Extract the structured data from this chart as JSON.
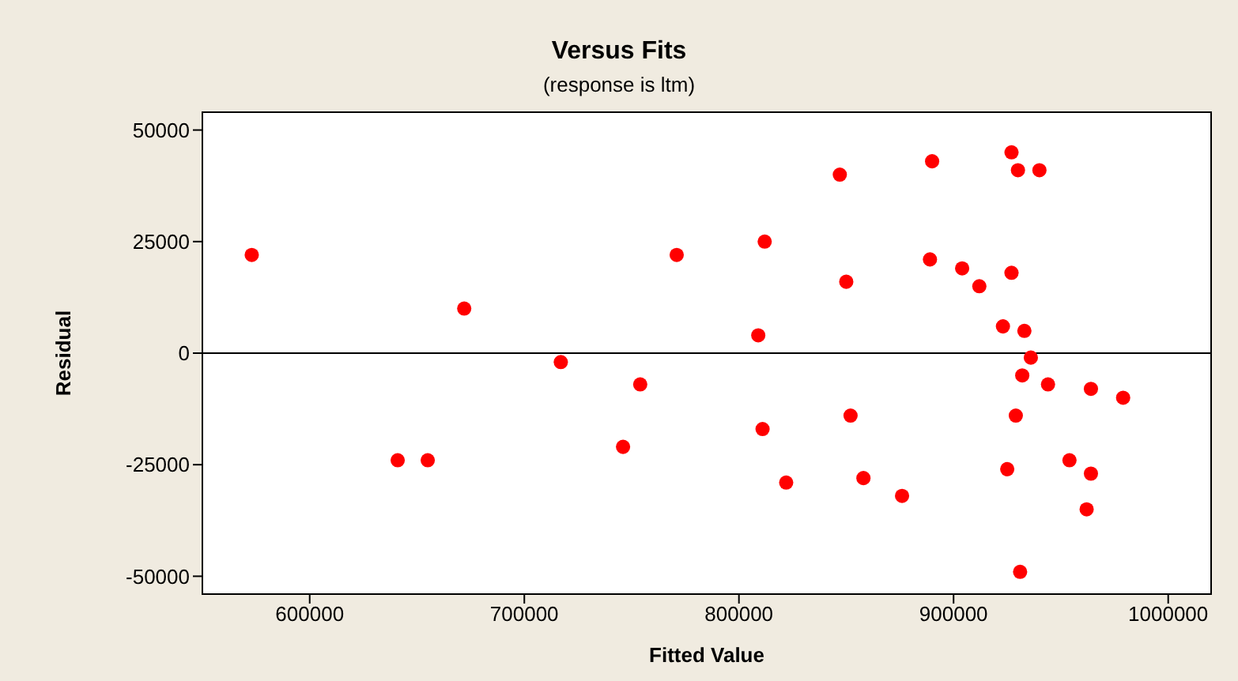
{
  "chart_data": {
    "type": "scatter",
    "title": "Versus Fits",
    "subtitle": "(response is ltm)",
    "xlabel": "Fitted Value",
    "ylabel": "Residual",
    "x": [
      573000,
      641000,
      655000,
      672000,
      717000,
      746000,
      754000,
      771000,
      809000,
      811000,
      812000,
      822000,
      847000,
      850000,
      852000,
      858000,
      876000,
      889000,
      890000,
      904000,
      912000,
      923000,
      925000,
      927000,
      927000,
      929000,
      930000,
      931000,
      932000,
      933000,
      936000,
      940000,
      944000,
      954000,
      962000,
      964000,
      964000,
      979000
    ],
    "series": [
      {
        "color": "#ff0000",
        "values": [
          22000,
          -24000,
          -24000,
          10000,
          -2000,
          -21000,
          -7000,
          22000,
          4000,
          -17000,
          25000,
          -29000,
          40000,
          16000,
          -14000,
          -28000,
          -32000,
          21000,
          43000,
          19000,
          15000,
          6000,
          -26000,
          45000,
          18000,
          -14000,
          41000,
          -49000,
          -5000,
          5000,
          -1000,
          41000,
          -7000,
          -24000,
          -35000,
          -8000,
          -27000,
          -10000
        ]
      }
    ],
    "xlim": [
      550000,
      1020000
    ],
    "xticks": [
      600000,
      700000,
      800000,
      900000,
      1000000
    ],
    "ylim": [
      -54000,
      54000
    ],
    "yticks": [
      -50000,
      -25000,
      0,
      25000,
      50000
    ],
    "ref_lines": [
      {
        "axis": "y",
        "value": 0,
        "color": "#000000"
      }
    ],
    "marker": "circle",
    "legend": false
  }
}
